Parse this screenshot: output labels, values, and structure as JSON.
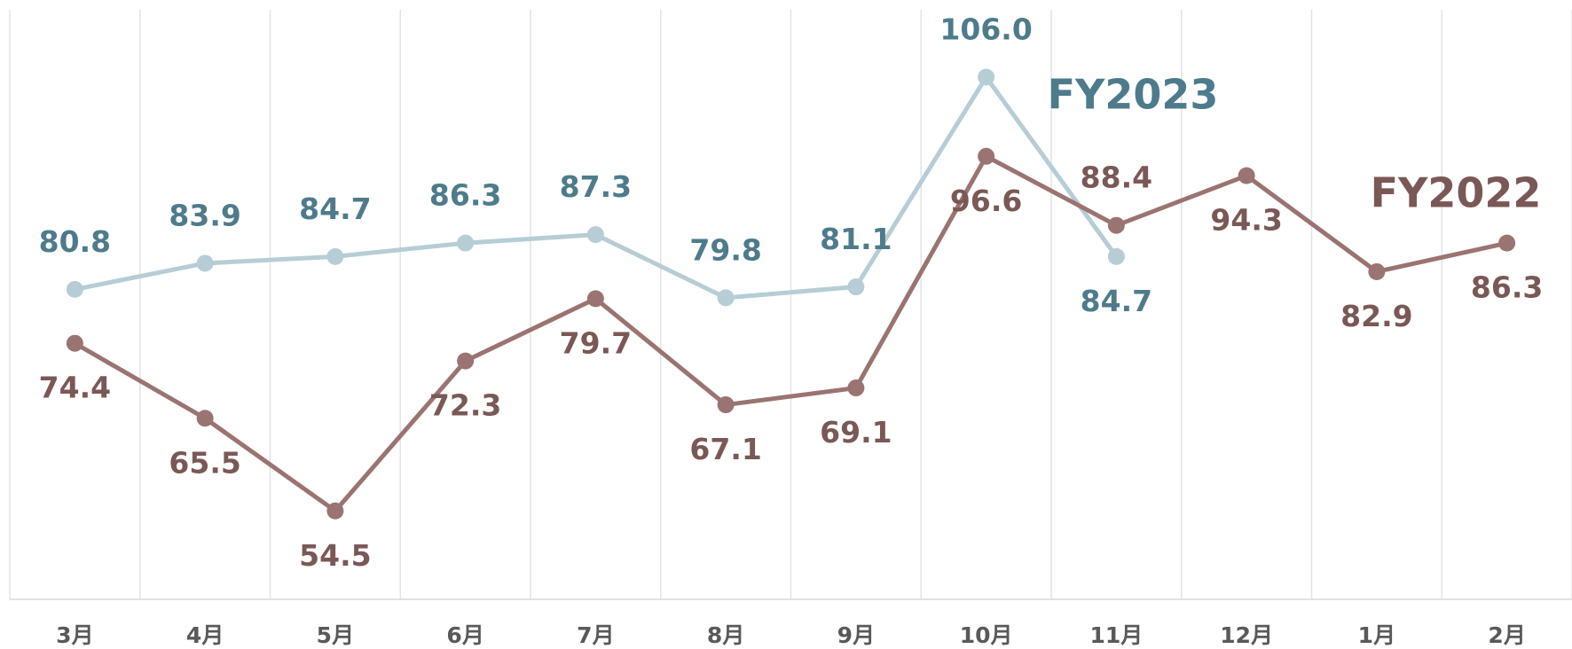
{
  "chart_data": {
    "type": "line",
    "categories": [
      "3月",
      "4月",
      "5月",
      "6月",
      "7月",
      "8月",
      "9月",
      "10月",
      "11月",
      "12月",
      "1月",
      "2月"
    ],
    "series": [
      {
        "name": "FY2023",
        "color": "#b6cdd6",
        "label_color": "#4e7b8c",
        "values": [
          80.8,
          83.9,
          84.7,
          86.3,
          87.3,
          79.8,
          81.1,
          106,
          84.7,
          null,
          null,
          null
        ],
        "value_labels": [
          "80.8",
          "83.9",
          "84.7",
          "86.3",
          "87.3",
          "79.8",
          "81.1",
          "106.0",
          "84.7",
          null,
          null,
          null
        ]
      },
      {
        "name": "FY2022",
        "color": "#9a7471",
        "label_color": "#7a5856",
        "values": [
          74.4,
          65.5,
          54.5,
          72.3,
          79.7,
          67.1,
          69.1,
          96.6,
          88.4,
          94.3,
          82.9,
          86.3
        ],
        "value_labels": [
          "74.4",
          "65.5",
          "54.5",
          "72.3",
          "79.7",
          "67.1",
          "69.1",
          "96.6",
          "88.4",
          "94.3",
          "82.9",
          "86.3"
        ]
      }
    ],
    "ylim": [
      44,
      114
    ],
    "grid": true
  }
}
